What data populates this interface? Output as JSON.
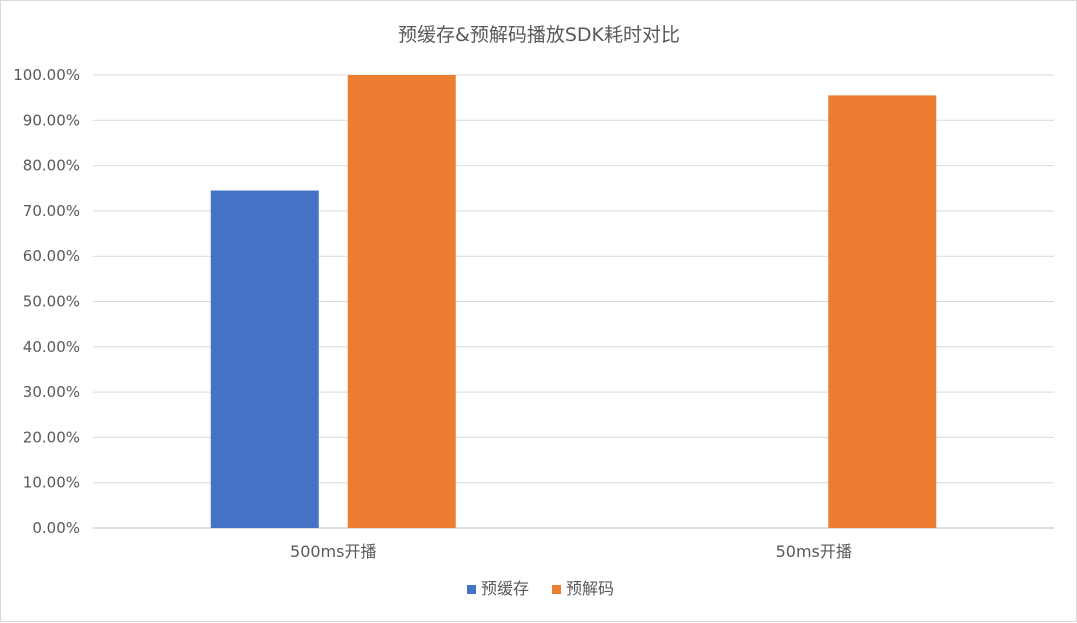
{
  "chart_data": {
    "type": "bar",
    "title": "预缓存&预解码播放SDK耗时对比",
    "categories": [
      "500ms开播",
      "50ms开播"
    ],
    "series": [
      {
        "name": "预缓存",
        "color": "#4472C4",
        "values": [
          0.745,
          null
        ]
      },
      {
        "name": "预解码",
        "color": "#ED7D31",
        "values": [
          1.0,
          0.955
        ]
      }
    ],
    "ylim": [
      0,
      1.0
    ],
    "yticks": [
      0,
      0.1,
      0.2,
      0.3,
      0.4,
      0.5,
      0.6,
      0.7,
      0.8,
      0.9,
      1.0
    ],
    "ytick_labels": [
      "0.00%",
      "10.00%",
      "20.00%",
      "30.00%",
      "40.00%",
      "50.00%",
      "60.00%",
      "70.00%",
      "80.00%",
      "90.00%",
      "100.00%"
    ],
    "xlabel": "",
    "ylabel": "",
    "grid": true,
    "legend_position": "bottom"
  }
}
